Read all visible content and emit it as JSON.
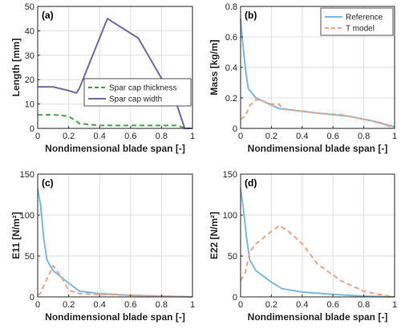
{
  "colors": {
    "axis": "#262626",
    "grid": "#dfdfdf",
    "reference": "#7db9de",
    "t_model": "#f2a27f",
    "thickness": "#49a349",
    "width": "#7467a6"
  },
  "chart_data": [
    {
      "type": "line",
      "tag": "(a)",
      "xlabel": "Nondimensional blade span [-]",
      "ylabel": "Length [mm]",
      "xlim": [
        0,
        1
      ],
      "ylim": [
        0,
        50
      ],
      "xticks": [
        "0",
        "0.2",
        "0.4",
        "0.6",
        "0.8",
        "1"
      ],
      "yticks": [
        "0",
        "10",
        "20",
        "30",
        "40",
        "50"
      ],
      "grid": true,
      "legend_position": "bottom-right",
      "series": [
        {
          "name": "Spar cap thickness",
          "style": "dashed",
          "color_key": "thickness",
          "x": [
            0,
            0.1,
            0.2,
            0.27,
            0.4,
            0.6,
            0.8,
            0.9,
            0.95,
            1
          ],
          "y": [
            5.5,
            5.6,
            5,
            2,
            1.2,
            1.2,
            1.2,
            1.2,
            0.2,
            0
          ]
        },
        {
          "name": "Spar cap width",
          "style": "solid",
          "color_key": "width",
          "x": [
            0,
            0.1,
            0.2,
            0.25,
            0.27,
            0.45,
            0.65,
            0.9,
            0.95,
            1
          ],
          "y": [
            17,
            17,
            15.5,
            14.5,
            16.5,
            45,
            37,
            9.5,
            0,
            0
          ]
        }
      ]
    },
    {
      "type": "line",
      "tag": "(b)",
      "xlabel": "Nondimensional blade span [-]",
      "ylabel": "Mass [kg/m]",
      "xlim": [
        0,
        1
      ],
      "ylim": [
        0,
        0.8
      ],
      "xticks": [
        "0",
        "0.2",
        "0.4",
        "0.6",
        "0.8",
        "1"
      ],
      "yticks": [
        "0",
        "0.2",
        "0.4",
        "0.6",
        "0.8"
      ],
      "grid": true,
      "legend_position": "top-right",
      "series": [
        {
          "name": "Reference",
          "style": "solid",
          "color_key": "reference",
          "x": [
            0,
            0.01,
            0.03,
            0.05,
            0.1,
            0.25,
            0.5,
            0.7,
            0.85,
            1
          ],
          "y": [
            0.72,
            0.6,
            0.4,
            0.26,
            0.2,
            0.13,
            0.1,
            0.08,
            0.05,
            0.01
          ]
        },
        {
          "name": "T model",
          "style": "dashed",
          "color_key": "t_model",
          "x": [
            0,
            0.03,
            0.06,
            0.1,
            0.2,
            0.25,
            0.27,
            0.5,
            0.65,
            0.8,
            0.9,
            1
          ],
          "y": [
            0.06,
            0.08,
            0.15,
            0.19,
            0.16,
            0.16,
            0.13,
            0.1,
            0.09,
            0.06,
            0.04,
            0
          ]
        }
      ]
    },
    {
      "type": "line",
      "tag": "(c)",
      "xlabel": "Nondimensional blade span [-]",
      "ylabel": "E11 [N/m²]",
      "xlim": [
        0,
        1
      ],
      "ylim": [
        0,
        150
      ],
      "xticks": [
        "0",
        "0.2",
        "0.4",
        "0.6",
        "0.8",
        "1"
      ],
      "yticks": [
        "0",
        "50",
        "100",
        "150"
      ],
      "grid": true,
      "series": [
        {
          "name": "Reference",
          "style": "solid",
          "color_key": "reference",
          "x": [
            0,
            0.02,
            0.04,
            0.06,
            0.1,
            0.2,
            0.27,
            0.4,
            0.6,
            0.8,
            1
          ],
          "y": [
            132,
            110,
            70,
            45,
            32,
            17,
            7,
            4,
            2,
            1,
            0
          ]
        },
        {
          "name": "T model",
          "style": "dashed",
          "color_key": "t_model",
          "x": [
            0,
            0.02,
            0.05,
            0.08,
            0.1,
            0.15,
            0.2,
            0.27,
            0.4,
            0.6,
            0.8,
            1
          ],
          "y": [
            2,
            5,
            18,
            30,
            38,
            25,
            8,
            4,
            3,
            2,
            1,
            0
          ]
        }
      ]
    },
    {
      "type": "line",
      "tag": "(d)",
      "xlabel": "Nondimensional blade span [-]",
      "ylabel": "E22 [N/m²]",
      "xlim": [
        0,
        1
      ],
      "ylim": [
        0,
        150
      ],
      "xticks": [
        "0",
        "0.2",
        "0.4",
        "0.6",
        "0.8",
        "1"
      ],
      "yticks": [
        "0",
        "50",
        "100",
        "150"
      ],
      "grid": true,
      "series": [
        {
          "name": "Reference",
          "style": "solid",
          "color_key": "reference",
          "x": [
            0,
            0.02,
            0.04,
            0.06,
            0.1,
            0.2,
            0.27,
            0.4,
            0.6,
            0.8,
            1
          ],
          "y": [
            132,
            105,
            70,
            45,
            32,
            18,
            10,
            6,
            3,
            1,
            0
          ]
        },
        {
          "name": "T model",
          "style": "dashed",
          "color_key": "t_model",
          "x": [
            0,
            0.03,
            0.06,
            0.1,
            0.2,
            0.25,
            0.3,
            0.4,
            0.5,
            0.65,
            0.8,
            0.9,
            1
          ],
          "y": [
            20,
            30,
            55,
            65,
            80,
            87,
            82,
            65,
            40,
            20,
            7,
            3,
            0
          ]
        }
      ]
    }
  ]
}
